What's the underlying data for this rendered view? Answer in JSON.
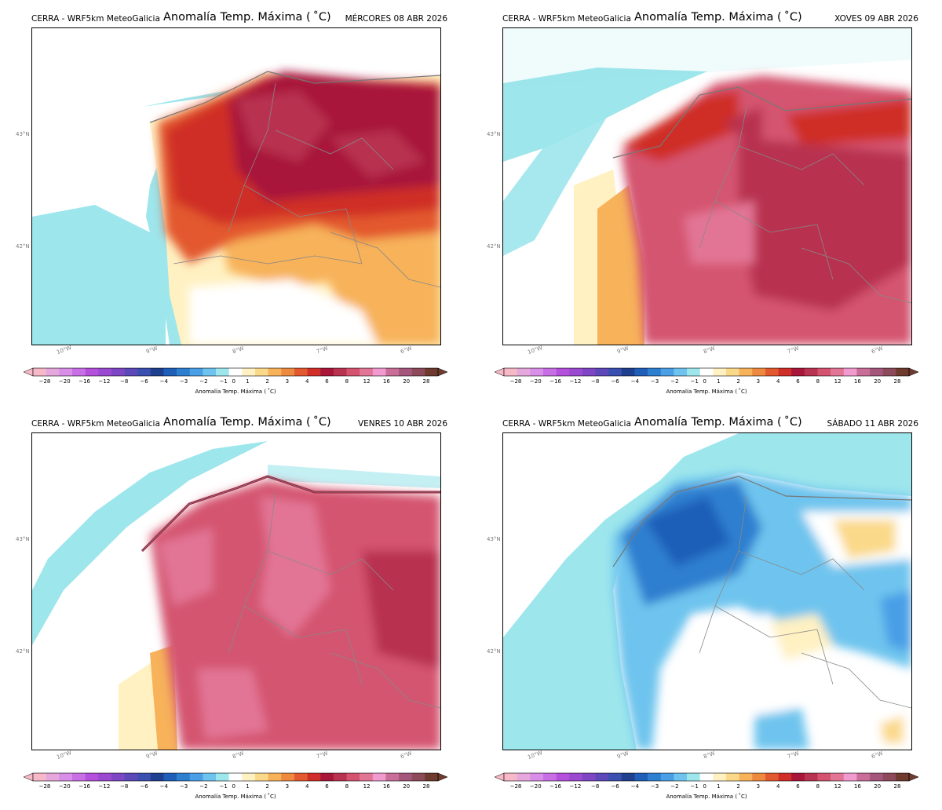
{
  "source_label": "CERRA - WRF5km MeteoGalicia",
  "title": "Anomalía Temp. Máxima ($^\\circ$C)",
  "title_text": "Anomalía Temp. Máxima ( ˚C)",
  "colorbar_label": "Anomalía Temp. Máxima ( ˚C)",
  "colorbar_ticks": [
    "−28",
    "−20",
    "−16",
    "−12",
    "−8",
    "−6",
    "−4",
    "−3",
    "−2",
    "−1",
    "0",
    "1",
    "2",
    "3",
    "4",
    "6",
    "8",
    "12",
    "16",
    "20",
    "28"
  ],
  "colorbar_colors": [
    "#f7b8c8",
    "#e6a8dc",
    "#d98ee8",
    "#c96fe6",
    "#b450dc",
    "#9a4ad0",
    "#7e46c4",
    "#5c48b8",
    "#3a4fb0",
    "#1f3f8f",
    "#1f5fb8",
    "#2f7fd0",
    "#4a9fe6",
    "#6ec4ee",
    "#9de6ec",
    "#ffffff",
    "#fff1c2",
    "#fbd98a",
    "#f7b25a",
    "#ee8a40",
    "#e3592f",
    "#cf2f28",
    "#a8173a",
    "#b8334f",
    "#d45470",
    "#e27595",
    "#f09ad0",
    "#c96e98",
    "#a4577a",
    "#8c4a5a",
    "#6e3b2e"
  ],
  "lat_labels": [
    "43°N",
    "42°N"
  ],
  "lon_labels": [
    "10°W",
    "9°W",
    "8°W",
    "7°W",
    "6°W"
  ],
  "panels": [
    {
      "date": "MÉRCORES 08 ABR 2026",
      "scenario": "hot_north"
    },
    {
      "date": "XOVES 09 ABR 2026",
      "scenario": "hot_all"
    },
    {
      "date": "VENRES 10 ABR 2026",
      "scenario": "pink_all"
    },
    {
      "date": "SÁBADO 11 ABR 2026",
      "scenario": "cool"
    }
  ]
}
